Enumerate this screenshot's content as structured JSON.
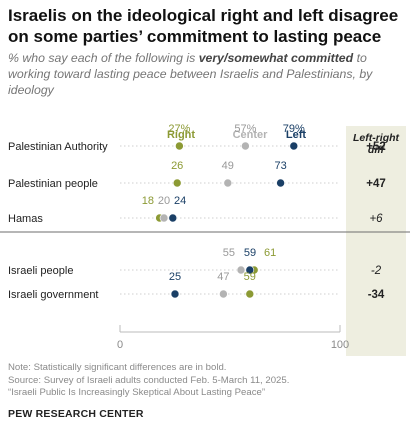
{
  "title": "Israelis on the ideological right and left disagree on some parties’ commitment to lasting peace",
  "subtitle": {
    "before": "% who say each of the following is ",
    "emphasis": "very/somewhat committed",
    "after": " to working toward lasting peace between Israelis and Palestinians, by ideology"
  },
  "diff_header": "Left-right diff",
  "notes": {
    "note": "Note: Statistically significant differences are in bold.",
    "source": "Source: Survey of Israeli adults conducted Feb. 5-March 11, 2025.",
    "report": "“Israeli Public Is Increasingly Skeptical About Lasting Peace”"
  },
  "org": "PEW RESEARCH CENTER",
  "colors": {
    "right": "#8c9a34",
    "center": "#b3b3b3",
    "left": "#1a3f66",
    "diff_panel": "#eeeee0"
  },
  "chart_data": {
    "type": "dot",
    "x_range": [
      0,
      100
    ],
    "x_ticks": [
      "0",
      "100"
    ],
    "series_names": [
      "Right",
      "Center",
      "Left"
    ],
    "rows": [
      {
        "category": "Palestinian Authority",
        "right": 27,
        "center": 57,
        "left": 79,
        "labels": {
          "right": "27%",
          "center": "57%",
          "left": "79%"
        },
        "diff": "+52",
        "diff_bold": true
      },
      {
        "category": "Palestinian people",
        "right": 26,
        "center": 49,
        "left": 73,
        "labels": {
          "right": "26",
          "center": "49",
          "left": "73"
        },
        "diff": "+47",
        "diff_bold": true
      },
      {
        "category": "Hamas",
        "right": 18,
        "center": 20,
        "left": 24,
        "labels": {
          "right": "18",
          "center": "20",
          "left": "24"
        },
        "diff": "+6",
        "diff_bold": false
      },
      {
        "category": "Israeli people",
        "right": 61,
        "center": 55,
        "left": 59,
        "labels": {
          "right": "61",
          "center": "55",
          "left": "59"
        },
        "diff": "-2",
        "diff_bold": false
      },
      {
        "category": "Israeli government",
        "right": 59,
        "center": 47,
        "left": 25,
        "labels": {
          "right": "59",
          "center": "47",
          "left": "25"
        },
        "diff": "-34",
        "diff_bold": true
      }
    ]
  }
}
